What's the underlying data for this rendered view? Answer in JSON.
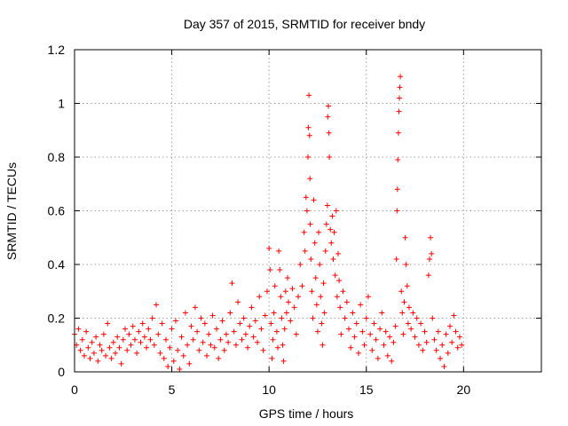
{
  "chart_data": {
    "type": "scatter",
    "title": "Day 357 of 2015, SRMTID for receiver bndy",
    "xlabel": "GPS time / hours",
    "ylabel": "SRMTID / TECUs",
    "xlim": [
      0,
      24
    ],
    "ylim": [
      0,
      1.2
    ],
    "x_ticks": [
      0,
      5,
      10,
      15,
      20
    ],
    "y_ticks": [
      0,
      0.2,
      0.4,
      0.6,
      0.8,
      1,
      1.2
    ],
    "x_tick_labels": [
      "0",
      "5",
      "10",
      "15",
      "20"
    ],
    "y_tick_labels": [
      "0",
      "0.2",
      "0.4",
      "0.6",
      "0.8",
      "1",
      "1.2"
    ],
    "grid": true,
    "marker": "plus",
    "color": "#ff0000",
    "series": [
      {
        "name": "SRMTID",
        "points": [
          [
            0.0,
            0.14
          ],
          [
            0.1,
            0.1
          ],
          [
            0.2,
            0.16
          ],
          [
            0.3,
            0.08
          ],
          [
            0.4,
            0.12
          ],
          [
            0.5,
            0.06
          ],
          [
            0.6,
            0.15
          ],
          [
            0.7,
            0.09
          ],
          [
            0.8,
            0.05
          ],
          [
            0.9,
            0.11
          ],
          [
            1.0,
            0.07
          ],
          [
            1.1,
            0.13
          ],
          [
            1.2,
            0.04
          ],
          [
            1.3,
            0.1
          ],
          [
            1.4,
            0.08
          ],
          [
            1.5,
            0.14
          ],
          [
            1.6,
            0.06
          ],
          [
            1.7,
            0.18
          ],
          [
            1.8,
            0.09
          ],
          [
            1.9,
            0.05
          ],
          [
            2.0,
            0.11
          ],
          [
            2.1,
            0.07
          ],
          [
            2.2,
            0.13
          ],
          [
            2.3,
            0.09
          ],
          [
            2.4,
            0.03
          ],
          [
            2.5,
            0.12
          ],
          [
            2.6,
            0.16
          ],
          [
            2.7,
            0.08
          ],
          [
            2.8,
            0.14
          ],
          [
            2.9,
            0.1
          ],
          [
            3.0,
            0.17
          ],
          [
            3.1,
            0.12
          ],
          [
            3.2,
            0.07
          ],
          [
            3.3,
            0.15
          ],
          [
            3.4,
            0.11
          ],
          [
            3.5,
            0.18
          ],
          [
            3.6,
            0.13
          ],
          [
            3.7,
            0.09
          ],
          [
            3.8,
            0.16
          ],
          [
            3.9,
            0.12
          ],
          [
            4.0,
            0.2
          ],
          [
            4.1,
            0.1
          ],
          [
            4.2,
            0.25
          ],
          [
            4.3,
            0.14
          ],
          [
            4.4,
            0.07
          ],
          [
            4.5,
            0.18
          ],
          [
            4.6,
            0.05
          ],
          [
            4.7,
            0.12
          ],
          [
            4.8,
            0.02
          ],
          [
            4.9,
            0.09
          ],
          [
            5.0,
            0.16
          ],
          [
            5.1,
            0.04
          ],
          [
            5.2,
            0.19
          ],
          [
            5.3,
            0.08
          ],
          [
            5.4,
            0.01
          ],
          [
            5.5,
            0.13
          ],
          [
            5.6,
            0.06
          ],
          [
            5.7,
            0.22
          ],
          [
            5.8,
            0.1
          ],
          [
            5.9,
            0.03
          ],
          [
            6.0,
            0.17
          ],
          [
            6.1,
            0.12
          ],
          [
            6.2,
            0.24
          ],
          [
            6.3,
            0.15
          ],
          [
            6.4,
            0.08
          ],
          [
            6.5,
            0.2
          ],
          [
            6.6,
            0.11
          ],
          [
            6.7,
            0.18
          ],
          [
            6.8,
            0.06
          ],
          [
            6.9,
            0.14
          ],
          [
            7.0,
            0.1
          ],
          [
            7.1,
            0.21
          ],
          [
            7.2,
            0.09
          ],
          [
            7.3,
            0.16
          ],
          [
            7.4,
            0.05
          ],
          [
            7.5,
            0.12
          ],
          [
            7.6,
            0.19
          ],
          [
            7.7,
            0.08
          ],
          [
            7.8,
            0.14
          ],
          [
            7.9,
            0.11
          ],
          [
            8.0,
            0.22
          ],
          [
            8.1,
            0.33
          ],
          [
            8.2,
            0.15
          ],
          [
            8.3,
            0.1
          ],
          [
            8.4,
            0.26
          ],
          [
            8.5,
            0.18
          ],
          [
            8.6,
            0.12
          ],
          [
            8.7,
            0.2
          ],
          [
            8.8,
            0.14
          ],
          [
            8.9,
            0.09
          ],
          [
            9.0,
            0.17
          ],
          [
            9.1,
            0.24
          ],
          [
            9.2,
            0.13
          ],
          [
            9.3,
            0.19
          ],
          [
            9.4,
            0.11
          ],
          [
            9.5,
            0.28
          ],
          [
            9.6,
            0.16
          ],
          [
            9.7,
            0.08
          ],
          [
            9.8,
            0.21
          ],
          [
            9.9,
            0.3
          ],
          [
            10.0,
            0.46
          ],
          [
            10.05,
            0.38
          ],
          [
            10.1,
            0.18
          ],
          [
            10.15,
            0.05
          ],
          [
            10.2,
            0.12
          ],
          [
            10.25,
            0.22
          ],
          [
            10.3,
            0.32
          ],
          [
            10.4,
            0.15
          ],
          [
            10.45,
            0.09
          ],
          [
            10.5,
            0.45
          ],
          [
            10.55,
            0.38
          ],
          [
            10.6,
            0.28
          ],
          [
            10.65,
            0.2
          ],
          [
            10.7,
            0.1
          ],
          [
            10.75,
            0.04
          ],
          [
            10.8,
            0.16
          ],
          [
            10.85,
            0.3
          ],
          [
            10.9,
            0.22
          ],
          [
            10.95,
            0.35
          ],
          [
            11.0,
            0.26
          ],
          [
            11.1,
            0.19
          ],
          [
            11.2,
            0.31
          ],
          [
            11.3,
            0.24
          ],
          [
            11.4,
            0.14
          ],
          [
            11.5,
            0.28
          ],
          [
            11.6,
            0.4
          ],
          [
            11.7,
            0.32
          ],
          [
            11.8,
            0.52
          ],
          [
            11.85,
            0.45
          ],
          [
            11.9,
            0.65
          ],
          [
            11.95,
            0.6
          ],
          [
            12.0,
            0.8
          ],
          [
            12.02,
            0.91
          ],
          [
            12.05,
            1.03
          ],
          [
            12.08,
            0.88
          ],
          [
            12.1,
            0.72
          ],
          [
            12.12,
            0.55
          ],
          [
            12.15,
            0.42
          ],
          [
            12.2,
            0.3
          ],
          [
            12.25,
            0.2
          ],
          [
            12.3,
            0.64
          ],
          [
            12.35,
            0.48
          ],
          [
            12.4,
            0.35
          ],
          [
            12.45,
            0.25
          ],
          [
            12.5,
            0.15
          ],
          [
            12.55,
            0.52
          ],
          [
            12.6,
            0.4
          ],
          [
            12.65,
            0.28
          ],
          [
            12.7,
            0.18
          ],
          [
            12.75,
            0.1
          ],
          [
            12.8,
            0.33
          ],
          [
            12.85,
            0.22
          ],
          [
            12.9,
            0.45
          ],
          [
            12.95,
            0.55
          ],
          [
            13.0,
            0.62
          ],
          [
            13.02,
            0.95
          ],
          [
            13.05,
            0.99
          ],
          [
            13.08,
            0.89
          ],
          [
            13.1,
            0.8
          ],
          [
            13.15,
            0.53
          ],
          [
            13.2,
            0.48
          ],
          [
            13.25,
            0.58
          ],
          [
            13.3,
            0.42
          ],
          [
            13.35,
            0.52
          ],
          [
            13.4,
            0.36
          ],
          [
            13.45,
            0.6
          ],
          [
            13.5,
            0.28
          ],
          [
            13.55,
            0.44
          ],
          [
            13.6,
            0.34
          ],
          [
            13.65,
            0.24
          ],
          [
            13.7,
            0.14
          ],
          [
            13.8,
            0.3
          ],
          [
            13.9,
            0.2
          ],
          [
            14.0,
            0.26
          ],
          [
            14.1,
            0.16
          ],
          [
            14.2,
            0.09
          ],
          [
            14.3,
            0.22
          ],
          [
            14.4,
            0.13
          ],
          [
            14.5,
            0.18
          ],
          [
            14.6,
            0.07
          ],
          [
            14.7,
            0.25
          ],
          [
            14.8,
            0.15
          ],
          [
            14.9,
            0.1
          ],
          [
            15.0,
            0.2
          ],
          [
            15.1,
            0.28
          ],
          [
            15.2,
            0.14
          ],
          [
            15.3,
            0.08
          ],
          [
            15.4,
            0.18
          ],
          [
            15.5,
            0.12
          ],
          [
            15.6,
            0.05
          ],
          [
            15.7,
            0.16
          ],
          [
            15.8,
            0.22
          ],
          [
            15.9,
            0.1
          ],
          [
            16.0,
            0.15
          ],
          [
            16.1,
            0.06
          ],
          [
            16.2,
            0.13
          ],
          [
            16.3,
            0.04
          ],
          [
            16.4,
            0.11
          ],
          [
            16.5,
            0.17
          ],
          [
            16.55,
            0.42
          ],
          [
            16.58,
            0.6
          ],
          [
            16.6,
            0.68
          ],
          [
            16.62,
            0.79
          ],
          [
            16.65,
            0.89
          ],
          [
            16.68,
            0.97
          ],
          [
            16.7,
            1.02
          ],
          [
            16.72,
            1.06
          ],
          [
            16.75,
            1.1
          ],
          [
            16.8,
            0.3
          ],
          [
            16.85,
            0.22
          ],
          [
            16.9,
            0.14
          ],
          [
            16.95,
            0.26
          ],
          [
            17.0,
            0.5
          ],
          [
            17.05,
            0.4
          ],
          [
            17.1,
            0.32
          ],
          [
            17.15,
            0.18
          ],
          [
            17.2,
            0.24
          ],
          [
            17.3,
            0.16
          ],
          [
            17.4,
            0.22
          ],
          [
            17.5,
            0.13
          ],
          [
            17.6,
            0.2
          ],
          [
            17.7,
            0.1
          ],
          [
            17.8,
            0.18
          ],
          [
            17.9,
            0.08
          ],
          [
            18.0,
            0.15
          ],
          [
            18.1,
            0.11
          ],
          [
            18.2,
            0.36
          ],
          [
            18.25,
            0.42
          ],
          [
            18.3,
            0.5
          ],
          [
            18.35,
            0.44
          ],
          [
            18.4,
            0.2
          ],
          [
            18.5,
            0.12
          ],
          [
            18.6,
            0.08
          ],
          [
            18.7,
            0.15
          ],
          [
            18.8,
            0.05
          ],
          [
            18.9,
            0.1
          ],
          [
            19.0,
            0.02
          ],
          [
            19.1,
            0.14
          ],
          [
            19.2,
            0.07
          ],
          [
            19.3,
            0.17
          ],
          [
            19.4,
            0.11
          ],
          [
            19.5,
            0.21
          ],
          [
            19.6,
            0.15
          ],
          [
            19.7,
            0.09
          ],
          [
            19.8,
            0.13
          ],
          [
            19.9,
            0.1
          ]
        ]
      }
    ]
  }
}
